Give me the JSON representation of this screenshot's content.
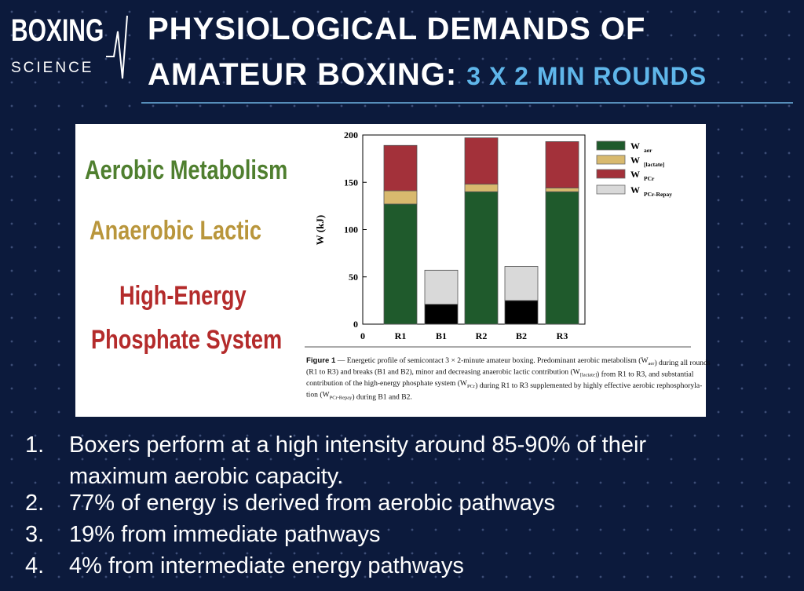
{
  "header": {
    "logo_top": "BOXING",
    "logo_bottom": "SCIENCE",
    "title_line1": "PHYSIOLOGICAL DEMANDS OF",
    "title_line2": "AMATEUR BOXING:",
    "title_highlight": "3 X 2 MIN ROUNDS"
  },
  "side_labels": {
    "aerobic": "Aerobic Metabolism",
    "lactic": "Anaerobic Lactic",
    "phosphate_line1": "High-Energy",
    "phosphate_line2": "Phosphate System"
  },
  "chart_data": {
    "type": "bar",
    "stacked": true,
    "ylabel": "W (kJ)",
    "x_origin": "0",
    "categories": [
      "R1",
      "B1",
      "R2",
      "B2",
      "R3"
    ],
    "ylim": [
      0,
      200
    ],
    "yticks": [
      0,
      50,
      100,
      150,
      200
    ],
    "series": [
      {
        "name": "W",
        "subscript": "aer",
        "color": "#1f5a2c",
        "point_colors": [
          "#1f5a2c",
          "#000000",
          "#1f5a2c",
          "#000000",
          "#1f5a2c"
        ],
        "values": [
          127,
          21,
          140,
          25,
          140
        ]
      },
      {
        "name": "W",
        "subscript": "[lactate]",
        "color": "#d8b96e",
        "values": [
          14,
          null,
          8,
          null,
          4
        ]
      },
      {
        "name": "W",
        "subscript": "PCr",
        "color": "#a3313a",
        "values": [
          48,
          null,
          49,
          null,
          49
        ]
      },
      {
        "name": "W",
        "subscript": "PCr-Repay",
        "color": "#d9d9d9",
        "values": [
          null,
          36,
          null,
          36,
          null
        ]
      }
    ]
  },
  "caption": {
    "lines": [
      [
        {
          "bold": "Figure 1"
        },
        {
          "text": " — Energetic profile of semicontact 3 × 2-minute amateur boxing. Predominant aerobic metabolism (W"
        },
        {
          "sub": "aer"
        },
        {
          "text": ") during all rounds"
        }
      ],
      [
        {
          "text": "(R1 to R3) and breaks (B1 and B2), minor and decreasing anaerobic lactic contribution (W"
        },
        {
          "sub": "[lactate]"
        },
        {
          "text": ") from R1 to R3, and substantial"
        }
      ],
      [
        {
          "text": "contribution of the high-energy phosphate system (W"
        },
        {
          "sub": "PCr"
        },
        {
          "text": ") during R1 to R3 supplemented by highly effective aerobic rephosphoryla-"
        }
      ],
      [
        {
          "text": "tion (W"
        },
        {
          "sub": "PCr-Repay"
        },
        {
          "text": ") during B1 and B2."
        }
      ]
    ]
  },
  "list": [
    {
      "marker": "1.",
      "lines": [
        "Boxers perform at a high intensity around 85-90% of their",
        "maximum aerobic capacity."
      ]
    },
    {
      "marker": "2.",
      "lines": [
        "77% of energy is derived from aerobic pathways"
      ]
    },
    {
      "marker": "3.",
      "lines": [
        "19% from immediate pathways"
      ]
    },
    {
      "marker": "4.",
      "lines": [
        "4% from intermediate energy pathways"
      ]
    }
  ]
}
